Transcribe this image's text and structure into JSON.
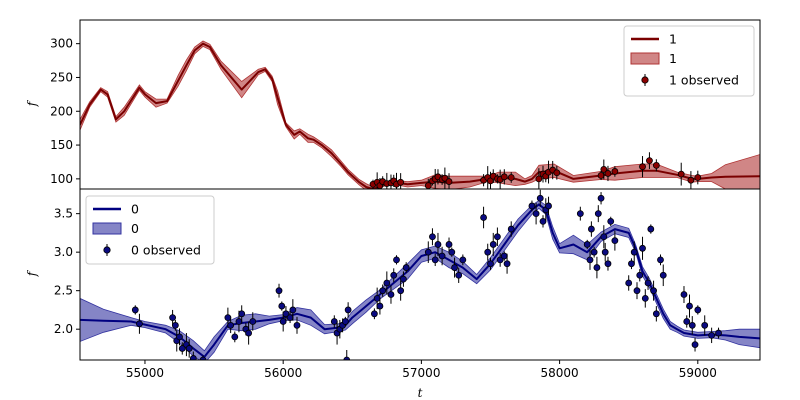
{
  "chart_data": [
    {
      "type": "line",
      "panel": "top",
      "xlabel": "",
      "ylabel": "f",
      "xlim": [
        54530,
        59450
      ],
      "ylim": [
        85,
        335
      ],
      "yticks": [
        100,
        150,
        200,
        250,
        300
      ],
      "ytick_labels": [
        "100",
        "150",
        "200",
        "250",
        "300"
      ],
      "legend_position": "top-right",
      "colors": {
        "line": "#7a0000",
        "band": "#b03535",
        "marker": "#8b0000"
      },
      "legend": [
        "1",
        "1",
        "1 observed"
      ],
      "series": [
        {
          "name": "1",
          "kind": "model-line",
          "x": [
            54530,
            54600,
            54680,
            54730,
            54790,
            54850,
            54960,
            55000,
            55080,
            55160,
            55240,
            55300,
            55360,
            55420,
            55470,
            55550,
            55700,
            55820,
            55870,
            55920,
            55960,
            56020,
            56080,
            56120,
            56180,
            56220,
            56280,
            56350,
            56420,
            56470,
            56550,
            56600,
            56650,
            56700,
            56800,
            56900,
            57000,
            57100,
            57200,
            57350,
            57480,
            57560,
            57680,
            57750,
            57800,
            57850,
            57960,
            58100,
            58300,
            58400,
            58600,
            58700,
            58850,
            58960,
            59000,
            59100,
            59200,
            59450
          ],
          "y": [
            180,
            210,
            232,
            225,
            188,
            200,
            235,
            225,
            212,
            215,
            245,
            268,
            290,
            300,
            295,
            268,
            232,
            258,
            262,
            248,
            220,
            180,
            165,
            170,
            160,
            158,
            150,
            138,
            122,
            110,
            95,
            88,
            85,
            90,
            95,
            92,
            94,
            96,
            94,
            96,
            100,
            102,
            100,
            96,
            100,
            110,
            112,
            100,
            105,
            108,
            112,
            112,
            106,
            100,
            100,
            102,
            103,
            104
          ]
        },
        {
          "name": "1",
          "kind": "uncertainty-band",
          "x": [
            54530,
            54600,
            54680,
            54730,
            54790,
            54850,
            54960,
            55000,
            55080,
            55160,
            55240,
            55300,
            55360,
            55420,
            55470,
            55550,
            55700,
            55820,
            55870,
            55920,
            55960,
            56020,
            56080,
            56120,
            56180,
            56220,
            56280,
            56350,
            56420,
            56470,
            56550,
            56600,
            56650,
            56700,
            56800,
            56900,
            57000,
            57100,
            57200,
            57350,
            57480,
            57560,
            57680,
            57750,
            57800,
            57850,
            57960,
            58100,
            58300,
            58400,
            58600,
            58700,
            58850,
            58960,
            59000,
            59100,
            59200,
            59450
          ],
          "halfwidth": [
            8,
            4,
            3,
            4,
            4,
            6,
            4,
            4,
            6,
            3,
            8,
            8,
            5,
            4,
            4,
            6,
            12,
            4,
            3,
            4,
            10,
            3,
            6,
            4,
            6,
            4,
            4,
            5,
            4,
            4,
            4,
            5,
            3,
            2,
            3,
            4,
            4,
            10,
            10,
            8,
            4,
            8,
            10,
            4,
            5,
            10,
            10,
            5,
            6,
            10,
            10,
            10,
            4,
            5,
            4,
            6,
            18,
            32
          ]
        },
        {
          "name": "1 observed",
          "kind": "observed-points",
          "x": [
            56650,
            56680,
            56700,
            56720,
            56750,
            56780,
            56800,
            56820,
            56850,
            57050,
            57080,
            57100,
            57120,
            57150,
            57170,
            57200,
            57450,
            57480,
            57500,
            57520,
            57550,
            57570,
            57600,
            57650,
            57850,
            57880,
            57900,
            57920,
            57950,
            57980,
            58300,
            58320,
            58350,
            58400,
            58600,
            58650,
            58700,
            58880,
            58950,
            59000
          ],
          "y": [
            92,
            95,
            90,
            96,
            93,
            94,
            97,
            92,
            95,
            90,
            97,
            100,
            103,
            99,
            101,
            96,
            98,
            102,
            97,
            104,
            100,
            99,
            103,
            102,
            100,
            107,
            104,
            110,
            113,
            109,
            105,
            114,
            108,
            111,
            118,
            127,
            120,
            107,
            98,
            102
          ]
        }
      ]
    },
    {
      "type": "line",
      "panel": "bottom",
      "xlabel": "t",
      "ylabel": "f",
      "xlim": [
        54530,
        59450
      ],
      "ylim": [
        1.6,
        3.82
      ],
      "xticks": [
        55000,
        56000,
        57000,
        58000,
        59000
      ],
      "xtick_labels": [
        "55000",
        "56000",
        "57000",
        "58000",
        "59000"
      ],
      "yticks": [
        2.0,
        2.5,
        3.0,
        3.5
      ],
      "ytick_labels": [
        "2.0",
        "2.5",
        "3.0",
        "3.5"
      ],
      "legend_position": "top-left",
      "colors": {
        "line": "#000080",
        "band": "#3333a0",
        "marker": "#0a0a80"
      },
      "legend": [
        "0",
        "0",
        "0 observed"
      ],
      "series": [
        {
          "name": "0",
          "kind": "model-line",
          "x": [
            54530,
            54700,
            54900,
            55000,
            55150,
            55250,
            55350,
            55430,
            55500,
            55600,
            55700,
            55800,
            55900,
            56000,
            56100,
            56200,
            56300,
            56400,
            56450,
            56500,
            56600,
            56700,
            56800,
            56900,
            57000,
            57100,
            57200,
            57300,
            57400,
            57500,
            57600,
            57700,
            57800,
            57850,
            57900,
            57950,
            58000,
            58100,
            58200,
            58300,
            58400,
            58500,
            58550,
            58600,
            58650,
            58700,
            58750,
            58800,
            58850,
            58900,
            59000,
            59100,
            59200,
            59300,
            59450
          ],
          "y": [
            2.12,
            2.11,
            2.1,
            2.06,
            2.0,
            1.9,
            1.75,
            1.64,
            1.8,
            2.05,
            2.08,
            2.1,
            2.12,
            2.15,
            2.2,
            2.15,
            2.0,
            2.02,
            2.05,
            2.15,
            2.3,
            2.45,
            2.6,
            2.75,
            2.95,
            3.0,
            2.9,
            2.8,
            2.65,
            2.85,
            3.1,
            3.35,
            3.55,
            3.62,
            3.55,
            3.25,
            3.05,
            3.1,
            3.0,
            3.2,
            3.3,
            3.25,
            3.05,
            2.75,
            2.6,
            2.4,
            2.2,
            2.05,
            2.0,
            1.95,
            1.92,
            1.93,
            1.92,
            1.9,
            1.88
          ]
        },
        {
          "name": "0",
          "kind": "uncertainty-band",
          "x": [
            54530,
            54700,
            54900,
            55000,
            55150,
            55250,
            55350,
            55430,
            55500,
            55600,
            55700,
            55800,
            55900,
            56000,
            56100,
            56200,
            56300,
            56400,
            56450,
            56500,
            56600,
            56700,
            56800,
            56900,
            57000,
            57100,
            57200,
            57300,
            57400,
            57500,
            57600,
            57700,
            57800,
            57850,
            57900,
            57950,
            58000,
            58100,
            58200,
            58300,
            58400,
            58500,
            58550,
            58600,
            58650,
            58700,
            58750,
            58800,
            58850,
            58900,
            59000,
            59100,
            59200,
            59300,
            59450
          ],
          "halfwidth": [
            0.28,
            0.15,
            0.05,
            0.04,
            0.05,
            0.08,
            0.1,
            0.08,
            0.1,
            0.05,
            0.1,
            0.1,
            0.05,
            0.04,
            0.08,
            0.1,
            0.06,
            0.05,
            0.06,
            0.08,
            0.08,
            0.06,
            0.08,
            0.1,
            0.08,
            0.08,
            0.1,
            0.08,
            0.06,
            0.08,
            0.08,
            0.08,
            0.06,
            0.05,
            0.06,
            0.08,
            0.06,
            0.12,
            0.1,
            0.06,
            0.06,
            0.06,
            0.05,
            0.06,
            0.06,
            0.06,
            0.06,
            0.05,
            0.04,
            0.04,
            0.04,
            0.04,
            0.06,
            0.1,
            0.12
          ]
        },
        {
          "name": "0 observed",
          "kind": "observed-points",
          "x": [
            54930,
            54960,
            55200,
            55220,
            55230,
            55250,
            55270,
            55300,
            55320,
            55350,
            55420,
            55600,
            55620,
            55650,
            55680,
            55700,
            55730,
            55750,
            55780,
            55970,
            55990,
            56000,
            56020,
            56050,
            56070,
            56100,
            56370,
            56390,
            56410,
            56430,
            56450,
            56460,
            56470,
            56660,
            56680,
            56700,
            56720,
            56750,
            56780,
            56800,
            56820,
            56850,
            56870,
            56890,
            57050,
            57080,
            57100,
            57120,
            57150,
            57200,
            57220,
            57240,
            57270,
            57300,
            57450,
            57480,
            57500,
            57520,
            57550,
            57570,
            57600,
            57620,
            57650,
            57800,
            57830,
            57860,
            57880,
            57900,
            57920,
            58150,
            58200,
            58220,
            58230,
            58250,
            58270,
            58280,
            58300,
            58320,
            58330,
            58350,
            58370,
            58400,
            58500,
            58520,
            58540,
            58560,
            58580,
            58600,
            58620,
            58640,
            58660,
            58680,
            58700,
            58730,
            58750,
            58900,
            58920,
            58940,
            58960,
            58980,
            59000,
            59050,
            59100,
            59150
          ],
          "y": [
            2.25,
            2.07,
            2.15,
            2.05,
            1.85,
            1.9,
            1.75,
            1.8,
            1.75,
            1.62,
            1.6,
            2.15,
            2.05,
            1.9,
            2.1,
            2.2,
            2.0,
            1.95,
            2.1,
            2.5,
            2.3,
            2.1,
            2.2,
            2.15,
            2.25,
            2.05,
            2.1,
            1.95,
            2.0,
            2.05,
            2.1,
            1.6,
            2.25,
            2.2,
            2.4,
            2.3,
            2.5,
            2.6,
            2.45,
            2.7,
            2.9,
            2.5,
            2.65,
            2.8,
            3.0,
            3.2,
            2.9,
            3.1,
            2.95,
            3.1,
            3.0,
            2.8,
            2.7,
            2.9,
            3.45,
            3.0,
            2.85,
            3.1,
            3.2,
            2.9,
            2.95,
            2.85,
            3.3,
            3.6,
            3.5,
            3.7,
            3.4,
            3.55,
            3.6,
            3.5,
            3.1,
            2.9,
            3.3,
            3.0,
            2.8,
            3.5,
            3.7,
            3.2,
            3.0,
            2.85,
            3.4,
            3.15,
            2.6,
            2.85,
            3.0,
            2.5,
            2.7,
            3.05,
            2.4,
            2.6,
            3.3,
            2.5,
            2.2,
            2.9,
            2.7,
            2.45,
            2.1,
            2.3,
            2.05,
            1.8,
            2.25,
            2.05,
            1.92,
            1.95
          ]
        }
      ]
    }
  ]
}
